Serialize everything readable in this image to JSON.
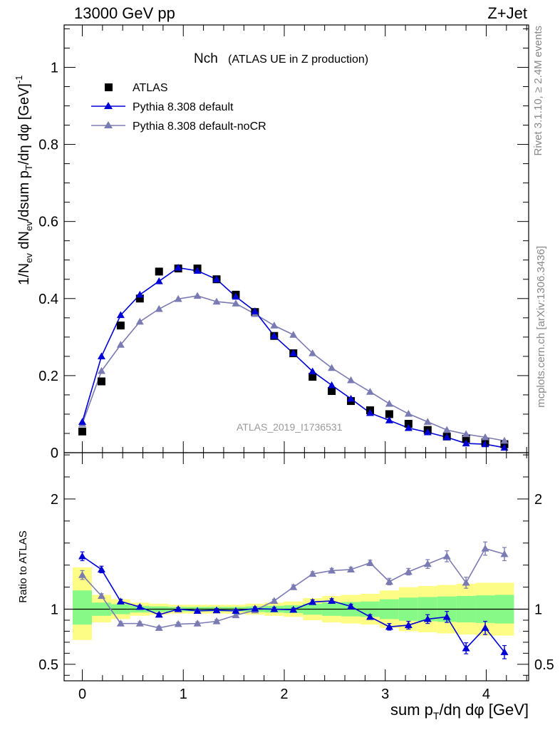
{
  "header": {
    "left": "13000 GeV pp",
    "right": "Z+Jet"
  },
  "side": {
    "rivet": "Rivet 3.1.10, ≥ 2.4M events",
    "source": "mcplots.cern.ch [arXiv:1306.3436]"
  },
  "colors": {
    "atlas": "#000000",
    "default": "#0000d6",
    "nocr": "#7b7bb3",
    "band_green": "#86f986",
    "band_yellow": "#fdfd86"
  },
  "chart_data": [
    {
      "type": "line",
      "title": "Nch",
      "subtitle": "(ATLAS UE in Z production)",
      "xlabel": "sum p_T/dη dφ [GeV]",
      "ylabel": "1/N_ev dN_ev/dsum p_T/dη dφ [GeV]^-1",
      "analysis": "ATLAS_2019_I1736531",
      "xlim": [
        -0.18,
        4.42
      ],
      "ylim": [
        0,
        1.11
      ],
      "xticks": [
        "0",
        "1",
        "2",
        "3",
        "4"
      ],
      "yticks": [
        "0",
        "0.2",
        "0.4",
        "0.6",
        "0.8",
        "1"
      ],
      "legend_position": "top-left",
      "x": [
        0.0,
        0.19,
        0.38,
        0.57,
        0.76,
        0.95,
        1.14,
        1.33,
        1.52,
        1.71,
        1.9,
        2.09,
        2.28,
        2.47,
        2.66,
        2.85,
        3.04,
        3.23,
        3.42,
        3.61,
        3.8,
        3.99,
        4.18
      ],
      "series": [
        {
          "name": "ATLAS",
          "marker": "square",
          "values": [
            0.055,
            0.185,
            0.33,
            0.4,
            0.47,
            0.478,
            0.478,
            0.45,
            0.41,
            0.365,
            0.303,
            0.258,
            0.197,
            0.16,
            0.134,
            0.11,
            0.1,
            0.075,
            0.059,
            0.042,
            0.036,
            0.027,
            0.022
          ]
        },
        {
          "name": "Pythia 8.308 default",
          "marker": "triangle",
          "values": [
            0.08,
            0.25,
            0.357,
            0.41,
            0.445,
            0.48,
            0.472,
            0.45,
            0.405,
            0.367,
            0.303,
            0.258,
            0.211,
            0.175,
            0.14,
            0.103,
            0.084,
            0.064,
            0.053,
            0.04,
            0.024,
            0.022,
            0.013
          ]
        },
        {
          "name": "Pythia 8.308 default-noCR",
          "marker": "triangle",
          "values": [
            0.075,
            0.212,
            0.28,
            0.34,
            0.373,
            0.399,
            0.407,
            0.392,
            0.387,
            0.36,
            0.33,
            0.306,
            0.258,
            0.22,
            0.188,
            0.158,
            0.127,
            0.101,
            0.08,
            0.059,
            0.048,
            0.04,
            0.031
          ]
        }
      ]
    },
    {
      "type": "line",
      "title": "",
      "xlabel": "sum p_T/dη dφ [GeV]",
      "ylabel": "Ratio to ATLAS",
      "xlim": [
        -0.18,
        4.42
      ],
      "ylim": [
        0.35,
        2.42
      ],
      "xticks": [
        "0",
        "1",
        "2",
        "3",
        "4"
      ],
      "yticks_left": [
        "0.5",
        "1",
        "2"
      ],
      "yticks_right": [
        "0.5",
        "1",
        "2"
      ],
      "reference_line": 1,
      "x": [
        0.0,
        0.19,
        0.38,
        0.57,
        0.76,
        0.95,
        1.14,
        1.33,
        1.52,
        1.71,
        1.9,
        2.09,
        2.28,
        2.47,
        2.66,
        2.85,
        3.04,
        3.23,
        3.42,
        3.61,
        3.8,
        3.99,
        4.18
      ],
      "bands": {
        "green_lo": [
          0.86,
          0.94,
          0.955,
          0.97,
          0.975,
          0.98,
          0.98,
          0.98,
          0.98,
          0.975,
          0.97,
          0.965,
          0.95,
          0.94,
          0.935,
          0.93,
          0.91,
          0.895,
          0.89,
          0.885,
          0.88,
          0.875,
          0.87
        ],
        "green_hi": [
          1.17,
          1.06,
          1.045,
          1.03,
          1.025,
          1.02,
          1.02,
          1.02,
          1.02,
          1.025,
          1.03,
          1.035,
          1.05,
          1.06,
          1.065,
          1.07,
          1.09,
          1.105,
          1.11,
          1.115,
          1.12,
          1.125,
          1.13
        ],
        "yellow_lo": [
          0.72,
          0.88,
          0.91,
          0.94,
          0.95,
          0.96,
          0.96,
          0.96,
          0.96,
          0.95,
          0.94,
          0.93,
          0.9,
          0.88,
          0.87,
          0.86,
          0.83,
          0.8,
          0.79,
          0.78,
          0.77,
          0.76,
          0.76
        ],
        "yellow_hi": [
          1.38,
          1.13,
          1.09,
          1.06,
          1.05,
          1.04,
          1.04,
          1.04,
          1.04,
          1.05,
          1.06,
          1.07,
          1.1,
          1.12,
          1.13,
          1.14,
          1.17,
          1.2,
          1.21,
          1.22,
          1.23,
          1.24,
          1.24
        ]
      },
      "series": [
        {
          "name": "Pythia 8.308 default",
          "values": [
            1.48,
            1.36,
            1.07,
            1.02,
            0.95,
            1.0,
            0.985,
            0.99,
            0.985,
            1.005,
            1.0,
            0.995,
            1.065,
            1.075,
            1.025,
            0.93,
            0.84,
            0.855,
            0.91,
            0.93,
            0.645,
            0.83,
            0.61
          ],
          "errors": [
            0.04,
            0.03,
            0.02,
            0.015,
            0.015,
            0.015,
            0.015,
            0.015,
            0.015,
            0.015,
            0.015,
            0.015,
            0.02,
            0.02,
            0.02,
            0.02,
            0.03,
            0.035,
            0.04,
            0.05,
            0.05,
            0.06,
            0.06
          ]
        },
        {
          "name": "Pythia 8.308 default-noCR",
          "values": [
            1.31,
            1.12,
            0.87,
            0.87,
            0.83,
            0.865,
            0.87,
            0.89,
            0.945,
            0.99,
            1.075,
            1.2,
            1.32,
            1.35,
            1.36,
            1.42,
            1.25,
            1.34,
            1.41,
            1.48,
            1.24,
            1.55,
            1.5
          ],
          "errors": [
            0.04,
            0.02,
            0.015,
            0.015,
            0.015,
            0.015,
            0.015,
            0.015,
            0.015,
            0.015,
            0.015,
            0.02,
            0.02,
            0.02,
            0.02,
            0.025,
            0.03,
            0.03,
            0.04,
            0.05,
            0.05,
            0.06,
            0.06
          ]
        }
      ]
    }
  ]
}
